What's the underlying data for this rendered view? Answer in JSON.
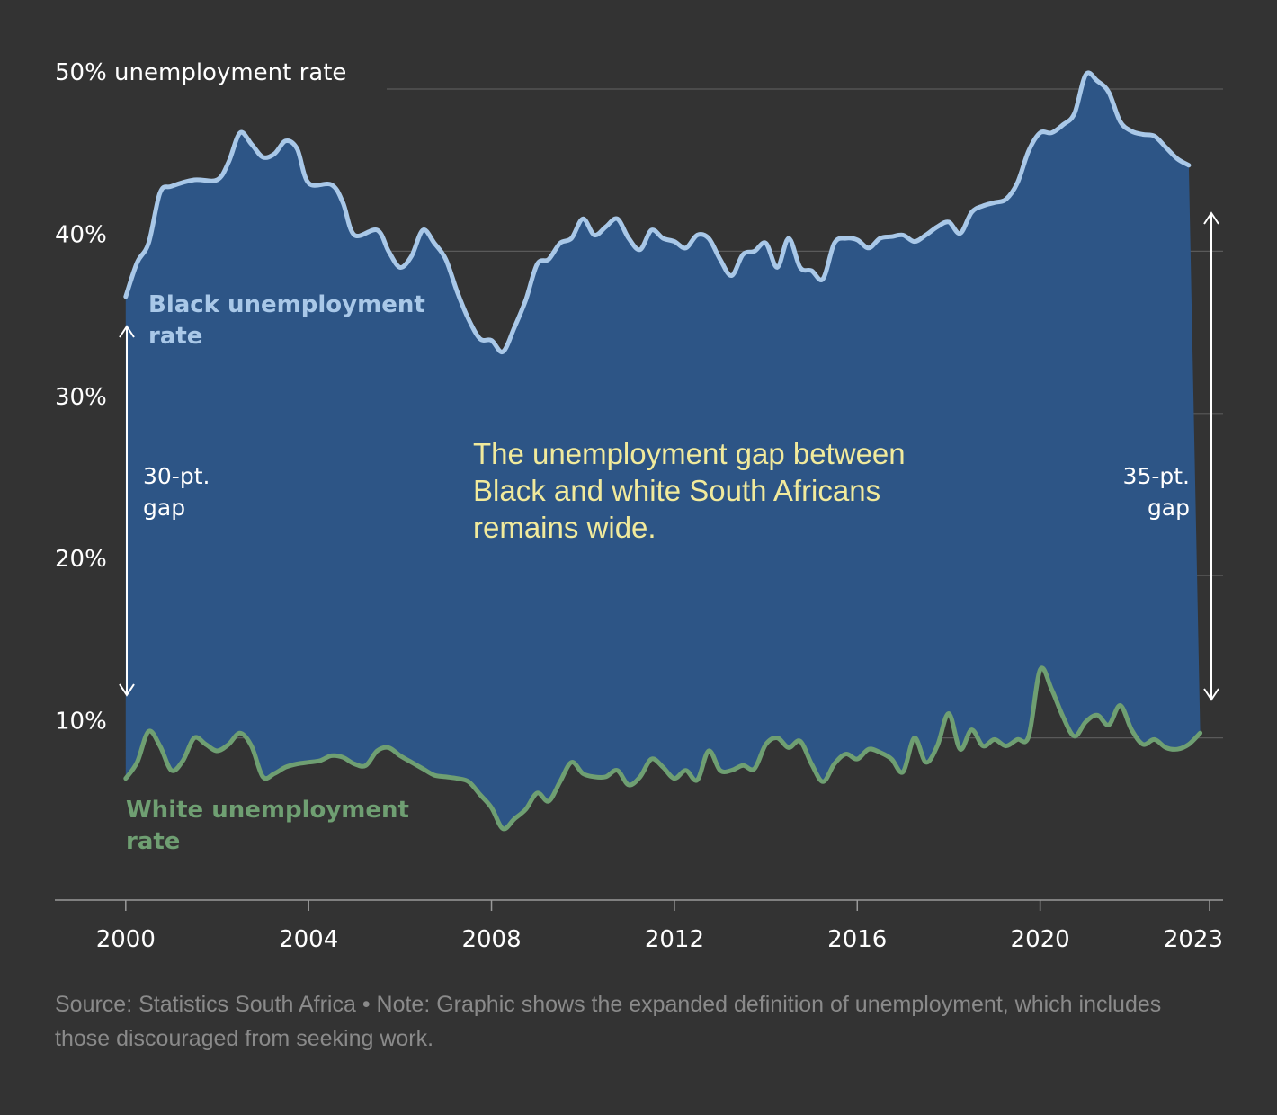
{
  "chart_data": {
    "type": "line",
    "subtype": "area-between",
    "ylabel_inline": "50% unemployment rate",
    "y_ticks": [
      {
        "value": 50,
        "label": "50% unemployment rate"
      },
      {
        "value": 40,
        "label": "40%"
      },
      {
        "value": 30,
        "label": "30%"
      },
      {
        "value": 20,
        "label": "20%"
      },
      {
        "value": 10,
        "label": "10%"
      }
    ],
    "x_ticks": [
      {
        "value": 2000,
        "label": "2000"
      },
      {
        "value": 2004,
        "label": "2004"
      },
      {
        "value": 2008,
        "label": "2008"
      },
      {
        "value": 2012,
        "label": "2012"
      },
      {
        "value": 2016,
        "label": "2016"
      },
      {
        "value": 2020,
        "label": "2020"
      },
      {
        "value": 2023.75,
        "label": "2023"
      }
    ],
    "xlim": [
      1998.45,
      2024.0
    ],
    "ylim": [
      0,
      50
    ],
    "grid": "horizontal",
    "colors": {
      "background": "#333333",
      "gap_fill": "#2d5586",
      "black_line": "#a9c8e8",
      "white_line": "#6f9f72",
      "gridline": "#5a5a5a",
      "annotation": "#f1ea9c"
    },
    "series": [
      {
        "name": "Black unemployment rate",
        "label_lines": [
          "Black unemployment",
          "rate"
        ],
        "points": [
          [
            2000.0,
            37.2
          ],
          [
            2000.25,
            39.3
          ],
          [
            2000.5,
            40.5
          ],
          [
            2000.75,
            43.6
          ],
          [
            2001.0,
            44.0
          ],
          [
            2001.5,
            44.4
          ],
          [
            2002.0,
            44.4
          ],
          [
            2002.25,
            45.5
          ],
          [
            2002.5,
            47.3
          ],
          [
            2002.75,
            46.6
          ],
          [
            2003.0,
            45.8
          ],
          [
            2003.25,
            46.0
          ],
          [
            2003.5,
            46.8
          ],
          [
            2003.75,
            46.3
          ],
          [
            2004.0,
            44.2
          ],
          [
            2004.5,
            44.1
          ],
          [
            2004.75,
            43.0
          ],
          [
            2005.0,
            41.0
          ],
          [
            2005.5,
            41.3
          ],
          [
            2005.75,
            40.0
          ],
          [
            2006.0,
            39.0
          ],
          [
            2006.25,
            39.7
          ],
          [
            2006.5,
            41.3
          ],
          [
            2006.75,
            40.5
          ],
          [
            2007.0,
            39.5
          ],
          [
            2007.25,
            37.5
          ],
          [
            2007.5,
            35.8
          ],
          [
            2007.75,
            34.6
          ],
          [
            2008.0,
            34.5
          ],
          [
            2008.25,
            33.8
          ],
          [
            2008.5,
            35.3
          ],
          [
            2008.75,
            37.0
          ],
          [
            2009.0,
            39.2
          ],
          [
            2009.25,
            39.5
          ],
          [
            2009.5,
            40.5
          ],
          [
            2009.75,
            40.8
          ],
          [
            2010.0,
            42.0
          ],
          [
            2010.25,
            41.0
          ],
          [
            2010.5,
            41.5
          ],
          [
            2010.75,
            42.0
          ],
          [
            2011.0,
            40.8
          ],
          [
            2011.25,
            40.1
          ],
          [
            2011.5,
            41.3
          ],
          [
            2011.75,
            40.8
          ],
          [
            2012.0,
            40.6
          ],
          [
            2012.25,
            40.2
          ],
          [
            2012.5,
            41.0
          ],
          [
            2012.75,
            40.8
          ],
          [
            2013.0,
            39.5
          ],
          [
            2013.25,
            38.5
          ],
          [
            2013.5,
            39.8
          ],
          [
            2013.75,
            40.0
          ],
          [
            2014.0,
            40.5
          ],
          [
            2014.25,
            39.0
          ],
          [
            2014.5,
            40.8
          ],
          [
            2014.75,
            39.0
          ],
          [
            2015.0,
            38.8
          ],
          [
            2015.25,
            38.3
          ],
          [
            2015.5,
            40.5
          ],
          [
            2015.75,
            40.8
          ],
          [
            2016.0,
            40.7
          ],
          [
            2016.25,
            40.2
          ],
          [
            2016.5,
            40.8
          ],
          [
            2016.75,
            40.9
          ],
          [
            2017.0,
            41.0
          ],
          [
            2017.25,
            40.6
          ],
          [
            2017.5,
            41.0
          ],
          [
            2017.75,
            41.5
          ],
          [
            2018.0,
            41.8
          ],
          [
            2018.25,
            41.1
          ],
          [
            2018.5,
            42.4
          ],
          [
            2018.75,
            42.8
          ],
          [
            2019.0,
            43.0
          ],
          [
            2019.25,
            43.2
          ],
          [
            2019.5,
            44.2
          ],
          [
            2019.75,
            46.2
          ],
          [
            2020.0,
            47.3
          ],
          [
            2020.25,
            47.3
          ],
          [
            2020.5,
            47.8
          ],
          [
            2020.75,
            48.5
          ],
          [
            2021.0,
            50.9
          ],
          [
            2021.25,
            50.5
          ],
          [
            2021.5,
            49.8
          ],
          [
            2021.75,
            48.0
          ],
          [
            2022.0,
            47.4
          ],
          [
            2022.25,
            47.2
          ],
          [
            2022.5,
            47.1
          ],
          [
            2022.75,
            46.4
          ],
          [
            2023.0,
            45.7
          ],
          [
            2023.25,
            45.3
          ]
        ]
      },
      {
        "name": "White unemployment rate",
        "label_lines": [
          "White unemployment",
          "rate"
        ],
        "points": [
          [
            2000.0,
            7.5
          ],
          [
            2000.25,
            8.5
          ],
          [
            2000.5,
            10.4
          ],
          [
            2000.75,
            9.5
          ],
          [
            2001.0,
            8.0
          ],
          [
            2001.25,
            8.6
          ],
          [
            2001.5,
            10.0
          ],
          [
            2001.75,
            9.6
          ],
          [
            2002.0,
            9.2
          ],
          [
            2002.25,
            9.6
          ],
          [
            2002.5,
            10.3
          ],
          [
            2002.75,
            9.5
          ],
          [
            2003.0,
            7.6
          ],
          [
            2003.25,
            7.8
          ],
          [
            2003.5,
            8.2
          ],
          [
            2003.75,
            8.4
          ],
          [
            2004.0,
            8.5
          ],
          [
            2004.25,
            8.6
          ],
          [
            2004.5,
            8.9
          ],
          [
            2004.75,
            8.8
          ],
          [
            2005.0,
            8.4
          ],
          [
            2005.25,
            8.3
          ],
          [
            2005.5,
            9.2
          ],
          [
            2005.75,
            9.4
          ],
          [
            2006.0,
            8.9
          ],
          [
            2006.25,
            8.5
          ],
          [
            2006.5,
            8.1
          ],
          [
            2006.75,
            7.7
          ],
          [
            2007.0,
            7.6
          ],
          [
            2007.25,
            7.5
          ],
          [
            2007.5,
            7.3
          ],
          [
            2007.75,
            6.5
          ],
          [
            2008.0,
            5.7
          ],
          [
            2008.25,
            4.4
          ],
          [
            2008.5,
            5.0
          ],
          [
            2008.75,
            5.6
          ],
          [
            2009.0,
            6.6
          ],
          [
            2009.25,
            6.1
          ],
          [
            2009.5,
            7.3
          ],
          [
            2009.75,
            8.5
          ],
          [
            2010.0,
            7.8
          ],
          [
            2010.25,
            7.6
          ],
          [
            2010.5,
            7.6
          ],
          [
            2010.75,
            8.0
          ],
          [
            2011.0,
            7.1
          ],
          [
            2011.25,
            7.6
          ],
          [
            2011.5,
            8.7
          ],
          [
            2011.75,
            8.2
          ],
          [
            2012.0,
            7.5
          ],
          [
            2012.25,
            8.0
          ],
          [
            2012.5,
            7.4
          ],
          [
            2012.75,
            9.2
          ],
          [
            2013.0,
            8.0
          ],
          [
            2013.25,
            8.0
          ],
          [
            2013.5,
            8.3
          ],
          [
            2013.75,
            8.1
          ],
          [
            2014.0,
            9.6
          ],
          [
            2014.25,
            10.0
          ],
          [
            2014.5,
            9.4
          ],
          [
            2014.75,
            9.8
          ],
          [
            2015.0,
            8.4
          ],
          [
            2015.25,
            7.3
          ],
          [
            2015.5,
            8.4
          ],
          [
            2015.75,
            9.0
          ],
          [
            2016.0,
            8.7
          ],
          [
            2016.25,
            9.3
          ],
          [
            2016.5,
            9.1
          ],
          [
            2016.75,
            8.7
          ],
          [
            2017.0,
            7.9
          ],
          [
            2017.25,
            10.0
          ],
          [
            2017.5,
            8.5
          ],
          [
            2017.75,
            9.5
          ],
          [
            2018.0,
            11.5
          ],
          [
            2018.25,
            9.3
          ],
          [
            2018.5,
            10.5
          ],
          [
            2018.75,
            9.5
          ],
          [
            2019.0,
            9.9
          ],
          [
            2019.25,
            9.5
          ],
          [
            2019.5,
            9.9
          ],
          [
            2019.75,
            10.1
          ],
          [
            2020.0,
            14.2
          ],
          [
            2020.25,
            13.0
          ],
          [
            2020.5,
            11.3
          ],
          [
            2020.75,
            10.1
          ],
          [
            2021.0,
            11.0
          ],
          [
            2021.25,
            11.4
          ],
          [
            2021.5,
            10.8
          ],
          [
            2021.75,
            12.0
          ],
          [
            2022.0,
            10.5
          ],
          [
            2022.25,
            9.6
          ],
          [
            2022.5,
            9.9
          ],
          [
            2022.75,
            9.4
          ],
          [
            2023.0,
            9.3
          ],
          [
            2023.25,
            9.6
          ],
          [
            2023.5,
            10.3
          ]
        ]
      }
    ],
    "annotations": {
      "gap_start": [
        "30-pt.",
        "gap"
      ],
      "gap_end": [
        "35-pt.",
        "gap"
      ],
      "headline_lines": [
        "The unemployment gap between",
        "Black and white South Africans",
        "remains wide."
      ]
    },
    "footnote": "Source: Statistics South Africa  •  Note: Graphic shows the expanded definition of unemployment, which includes those discouraged from seeking work."
  }
}
